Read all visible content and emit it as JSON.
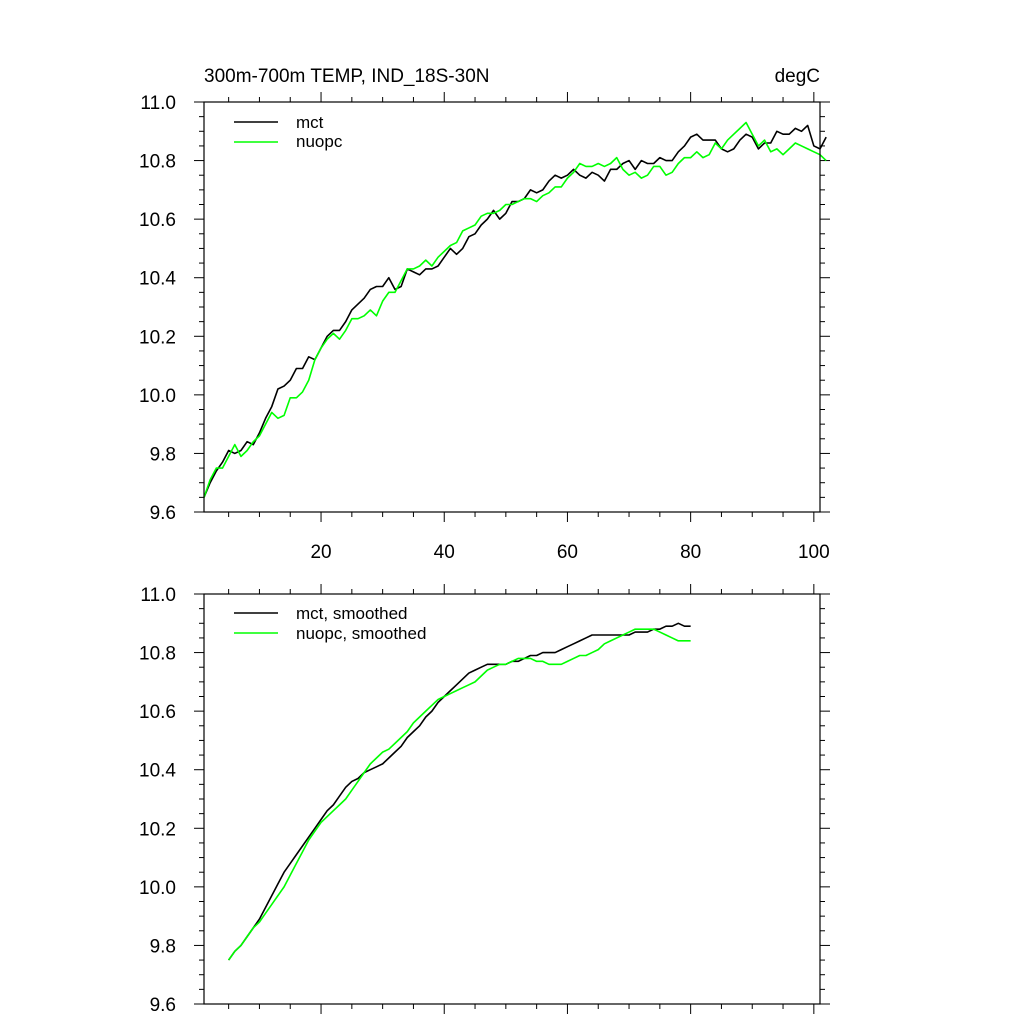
{
  "colors": {
    "mct": "#000000",
    "nuopc": "#00ff00"
  },
  "chart_data": [
    {
      "type": "line",
      "title_left": "300m-700m TEMP, IND_18S-30N",
      "title_right": "degC",
      "xlim": [
        1,
        101
      ],
      "ylim": [
        9.6,
        11.0
      ],
      "yticks": [
        "9.6",
        "9.8",
        "10.0",
        "10.2",
        "10.4",
        "10.6",
        "10.8",
        "11.0"
      ],
      "xticks": [
        "20",
        "40",
        "60",
        "80",
        "100"
      ],
      "legend_position": "top-left",
      "series": [
        {
          "name": "mct",
          "color_key": "mct",
          "x_start": 1,
          "values": [
            9.65,
            9.7,
            9.74,
            9.77,
            9.81,
            9.8,
            9.81,
            9.84,
            9.83,
            9.87,
            9.92,
            9.96,
            10.02,
            10.03,
            10.05,
            10.09,
            10.09,
            10.13,
            10.12,
            10.16,
            10.2,
            10.22,
            10.22,
            10.25,
            10.29,
            10.31,
            10.33,
            10.36,
            10.37,
            10.37,
            10.4,
            10.36,
            10.37,
            10.43,
            10.42,
            10.41,
            10.43,
            10.43,
            10.44,
            10.47,
            10.5,
            10.48,
            10.5,
            10.54,
            10.55,
            10.58,
            10.6,
            10.63,
            10.6,
            10.62,
            10.66,
            10.66,
            10.67,
            10.7,
            10.69,
            10.7,
            10.73,
            10.75,
            10.74,
            10.75,
            10.77,
            10.75,
            10.74,
            10.76,
            10.75,
            10.73,
            10.77,
            10.77,
            10.79,
            10.8,
            10.77,
            10.8,
            10.79,
            10.79,
            10.81,
            10.8,
            10.8,
            10.83,
            10.85,
            10.88,
            10.89,
            10.87,
            10.87,
            10.87,
            10.84,
            10.83,
            10.84,
            10.87,
            10.89,
            10.88,
            10.84,
            10.86,
            10.86,
            10.9,
            10.89,
            10.89,
            10.91,
            10.9,
            10.92,
            10.85,
            10.84,
            10.88
          ]
        },
        {
          "name": "nuopc",
          "color_key": "nuopc",
          "x_start": 1,
          "values": [
            9.65,
            9.71,
            9.75,
            9.75,
            9.79,
            9.83,
            9.79,
            9.81,
            9.84,
            9.86,
            9.9,
            9.94,
            9.92,
            9.93,
            9.99,
            9.99,
            10.01,
            10.05,
            10.12,
            10.16,
            10.19,
            10.21,
            10.19,
            10.22,
            10.26,
            10.26,
            10.27,
            10.29,
            10.27,
            10.32,
            10.35,
            10.35,
            10.39,
            10.43,
            10.43,
            10.44,
            10.46,
            10.44,
            10.47,
            10.49,
            10.51,
            10.52,
            10.56,
            10.57,
            10.58,
            10.61,
            10.62,
            10.62,
            10.63,
            10.65,
            10.65,
            10.66,
            10.67,
            10.67,
            10.66,
            10.68,
            10.69,
            10.71,
            10.71,
            10.74,
            10.76,
            10.79,
            10.78,
            10.78,
            10.79,
            10.78,
            10.79,
            10.81,
            10.77,
            10.75,
            10.76,
            10.74,
            10.75,
            10.78,
            10.78,
            10.75,
            10.76,
            10.79,
            10.81,
            10.81,
            10.83,
            10.81,
            10.82,
            10.86,
            10.84,
            10.87,
            10.89,
            10.91,
            10.93,
            10.89,
            10.85,
            10.87,
            10.83,
            10.84,
            10.82,
            10.84,
            10.86,
            10.85,
            10.84,
            10.83,
            10.82,
            10.8
          ]
        }
      ]
    },
    {
      "type": "line",
      "xlim": [
        1,
        101
      ],
      "ylim": [
        9.6,
        11.0
      ],
      "yticks": [
        "9.6",
        "9.8",
        "10.0",
        "10.2",
        "10.4",
        "10.6",
        "10.8",
        "11.0"
      ],
      "xticks": [],
      "legend_position": "top-left",
      "series": [
        {
          "name": "mct, smoothed",
          "color_key": "mct",
          "x_start": 5,
          "values": [
            9.75,
            9.78,
            9.8,
            9.83,
            9.86,
            9.89,
            9.93,
            9.97,
            10.01,
            10.05,
            10.08,
            10.11,
            10.14,
            10.17,
            10.2,
            10.23,
            10.26,
            10.28,
            10.31,
            10.34,
            10.36,
            10.37,
            10.39,
            10.4,
            10.41,
            10.42,
            10.44,
            10.46,
            10.48,
            10.51,
            10.53,
            10.55,
            10.58,
            10.6,
            10.63,
            10.65,
            10.67,
            10.69,
            10.71,
            10.73,
            10.74,
            10.75,
            10.76,
            10.76,
            10.76,
            10.76,
            10.77,
            10.77,
            10.78,
            10.79,
            10.79,
            10.8,
            10.8,
            10.8,
            10.81,
            10.82,
            10.83,
            10.84,
            10.85,
            10.86,
            10.86,
            10.86,
            10.86,
            10.86,
            10.86,
            10.86,
            10.87,
            10.87,
            10.87,
            10.88,
            10.88,
            10.89,
            10.89,
            10.9,
            10.89,
            10.89
          ]
        },
        {
          "name": "nuopc, smoothed",
          "color_key": "nuopc",
          "x_start": 5,
          "values": [
            9.75,
            9.78,
            9.8,
            9.83,
            9.86,
            9.88,
            9.91,
            9.94,
            9.97,
            10.0,
            10.04,
            10.08,
            10.12,
            10.16,
            10.19,
            10.22,
            10.24,
            10.26,
            10.28,
            10.3,
            10.33,
            10.36,
            10.39,
            10.42,
            10.44,
            10.46,
            10.47,
            10.49,
            10.51,
            10.53,
            10.56,
            10.58,
            10.6,
            10.62,
            10.64,
            10.65,
            10.66,
            10.67,
            10.68,
            10.69,
            10.7,
            10.72,
            10.74,
            10.75,
            10.76,
            10.76,
            10.77,
            10.78,
            10.78,
            10.78,
            10.77,
            10.77,
            10.76,
            10.76,
            10.76,
            10.77,
            10.78,
            10.79,
            10.79,
            10.8,
            10.81,
            10.83,
            10.84,
            10.85,
            10.86,
            10.87,
            10.88,
            10.88,
            10.88,
            10.88,
            10.87,
            10.86,
            10.85,
            10.84,
            10.84,
            10.84
          ]
        }
      ]
    }
  ]
}
